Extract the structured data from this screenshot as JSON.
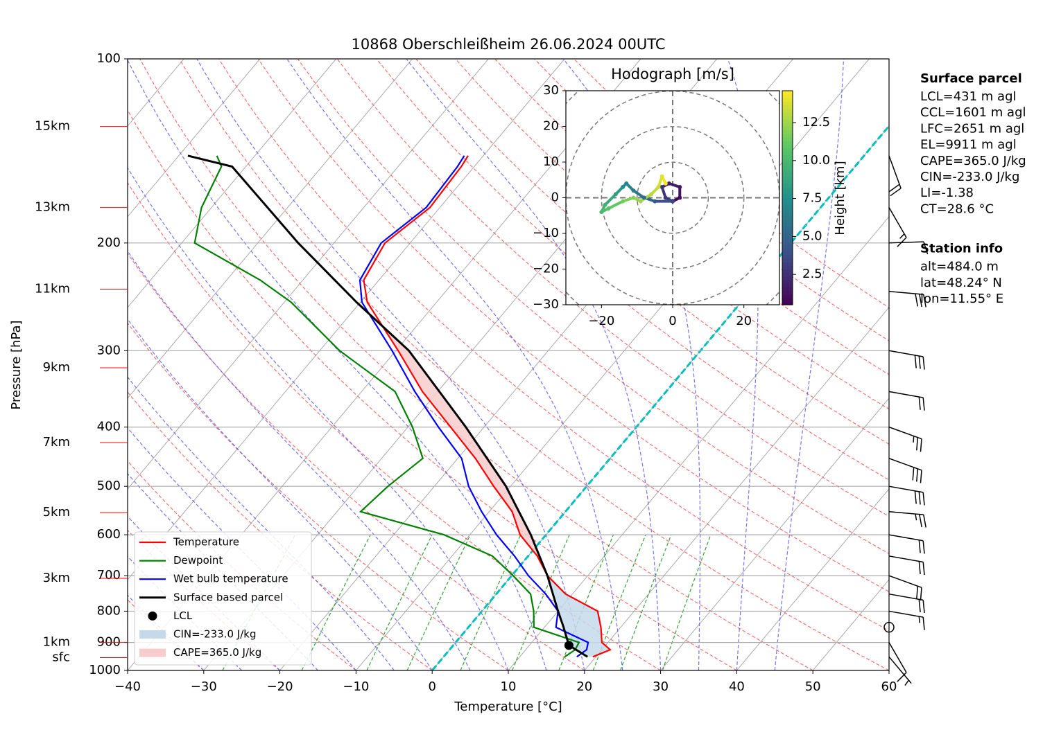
{
  "chart_data": {
    "type": "skewt",
    "title": "10868 Oberschleißheim 26.06.2024 00UTC",
    "xlabel": "Temperature [°C]",
    "ylabel": "Pressure [hPa]",
    "xlim": [
      -40,
      60
    ],
    "xticks": [
      {
        "value": -40,
        "label": "−40"
      },
      {
        "value": -30,
        "label": "−30"
      },
      {
        "value": -20,
        "label": "−20"
      },
      {
        "value": -10,
        "label": "−10"
      },
      0,
      10,
      20,
      30,
      40,
      50,
      60
    ],
    "ylim": [
      1000,
      100
    ],
    "yscale": "log",
    "yticks": [
      100,
      200,
      300,
      400,
      500,
      600,
      700,
      800,
      900,
      1000
    ],
    "grid": true,
    "legend_loc": "lower left",
    "series": [
      {
        "name": "Temperature",
        "color": "#ff0000",
        "pressure": [
          950,
          925,
          900,
          850,
          800,
          750,
          700,
          650,
          600,
          550,
          500,
          450,
          400,
          350,
          300,
          250,
          230,
          200,
          175,
          150,
          144
        ],
        "values": [
          19.6,
          21.1,
          19.2,
          17.4,
          15.2,
          9.1,
          4.7,
          1.2,
          -3.4,
          -7,
          -12.2,
          -17.7,
          -24.4,
          -32,
          -39.7,
          -49.1,
          -52,
          -53.3,
          -51.3,
          -51.7,
          -52
        ]
      },
      {
        "name": "Dewpoint",
        "color": "#008000",
        "pressure": [
          950,
          925,
          900,
          850,
          800,
          750,
          700,
          650,
          600,
          550,
          500,
          450,
          400,
          350,
          300,
          250,
          230,
          200,
          175,
          150,
          144
        ],
        "values": [
          15.9,
          16.5,
          16.2,
          8.6,
          6.8,
          4.5,
          0.2,
          -4.7,
          -13.4,
          -26.9,
          -26.1,
          -24.6,
          -29.4,
          -35.6,
          -47.4,
          -59.1,
          -65.6,
          -78.3,
          -81.3,
          -83.2,
          -85
        ]
      },
      {
        "name": "Wet bulb temperature",
        "color": "#0000ff",
        "pressure": [
          950,
          925,
          900,
          850,
          800,
          750,
          700,
          650,
          600,
          550,
          500,
          450,
          400,
          350,
          300,
          250,
          230,
          200,
          175,
          150,
          144
        ],
        "values": [
          17.5,
          18,
          17.4,
          11.5,
          10,
          6.5,
          2.2,
          -1.8,
          -6.5,
          -11,
          -15.5,
          -19.5,
          -26,
          -33,
          -40.5,
          -49.8,
          -52.5,
          -53.8,
          -51.8,
          -52.2,
          -52.5
        ]
      },
      {
        "name": "Surface based parcel",
        "color": "#000000",
        "pressure": [
          950,
          910,
          850,
          800,
          700,
          600,
          500,
          400,
          300,
          250,
          200,
          150,
          144
        ],
        "values": [
          18.9,
          15.2,
          12.5,
          10,
          4.7,
          -2,
          -10.6,
          -22.4,
          -38.3,
          -50.5,
          -64.7,
          -81.8,
          -88.8
        ]
      }
    ],
    "lcl": {
      "name": "LCL",
      "color": "#000000",
      "pressure": 910,
      "value": 15.2
    },
    "cin": {
      "name": "CIN=-233.0 J/kg",
      "color": "#c6d9ea"
    },
    "cape": {
      "name": "CAPE=365.0 J/kg",
      "color": "#f7cccc"
    },
    "height_label_color": "#ff0000",
    "height_labels": [
      {
        "label": "15km",
        "pressure": 129
      },
      {
        "label": "13km",
        "pressure": 175
      },
      {
        "label": "11km",
        "pressure": 238
      },
      {
        "label": "9km",
        "pressure": 320
      },
      {
        "label": "7km",
        "pressure": 424
      },
      {
        "label": "5km",
        "pressure": 552
      },
      {
        "label": "3km",
        "pressure": 707
      },
      {
        "label": "1km",
        "pressure": 900
      },
      {
        "label": "sfc",
        "pressure": 953
      }
    ],
    "wind_barbs": {
      "pressure": [
        144,
        175,
        200,
        240,
        300,
        350,
        400,
        450,
        500,
        550,
        600,
        650,
        700,
        750,
        800,
        850,
        900,
        950
      ],
      "direction": [
        160,
        150,
        88,
        95,
        100,
        100,
        110,
        110,
        100,
        95,
        100,
        100,
        110,
        100,
        100,
        0,
        150,
        140
      ],
      "speed": [
        20,
        15,
        10,
        30,
        30,
        20,
        25,
        30,
        30,
        25,
        20,
        20,
        20,
        20,
        15,
        0,
        10,
        5
      ]
    },
    "text_boxes": [
      {
        "title": "Surface parcel",
        "lines": [
          "LCL=431 m agl",
          "CCL=1601 m agl",
          "LFC=2651 m agl",
          "EL=9911 m agl",
          "CAPE=365.0 J/kg",
          "CIN=-233.0 J/kg",
          "LI=-1.38",
          "CT=28.6 °C"
        ]
      },
      {
        "title": "Station info",
        "lines": [
          "alt=484.0 m",
          "lat=48.24° N",
          "lon=11.55° E"
        ]
      }
    ],
    "hodograph": {
      "type": "hodograph",
      "title": "Hodograph [m/s]",
      "xlim": [
        -30,
        30
      ],
      "ylim": [
        -30,
        30
      ],
      "xticks": [
        {
          "value": -20,
          "label": "−20"
        },
        0,
        20
      ],
      "yticks": [
        {
          "value": -30,
          "label": "−30"
        },
        {
          "value": -20,
          "label": "−20"
        },
        {
          "value": -10,
          "label": "−10"
        },
        0,
        10,
        20,
        30
      ],
      "height": [
        0.5,
        1,
        1.5,
        2,
        2.5,
        3,
        3.5,
        4.5,
        5.5,
        6.5,
        7,
        7.5,
        8.5,
        9.5,
        10,
        10.5,
        11.5,
        12,
        12.5,
        13,
        13.5,
        14,
        14.5
      ],
      "u": [
        0,
        2,
        2,
        -1,
        -3,
        -2,
        0,
        -5,
        -8,
        -11,
        -13,
        -14,
        -16,
        -19,
        -20,
        -18,
        -14,
        -11,
        -9,
        -6,
        -4,
        -3,
        -2
      ],
      "v": [
        -1,
        0,
        3,
        4,
        3,
        0,
        -1,
        -1,
        0,
        2,
        4,
        3,
        1,
        -2,
        -4,
        -3,
        -1,
        0,
        -1,
        1,
        3,
        6,
        4
      ],
      "colormap": "viridis",
      "colorbar": {
        "label": "Height [km]",
        "clim": [
          0.5,
          14.6
        ],
        "ticks": [
          2.5,
          {
            "value": 5,
            "label": "5.0"
          },
          7.5,
          {
            "value": 10,
            "label": "10.0"
          },
          12.5
        ]
      }
    }
  }
}
